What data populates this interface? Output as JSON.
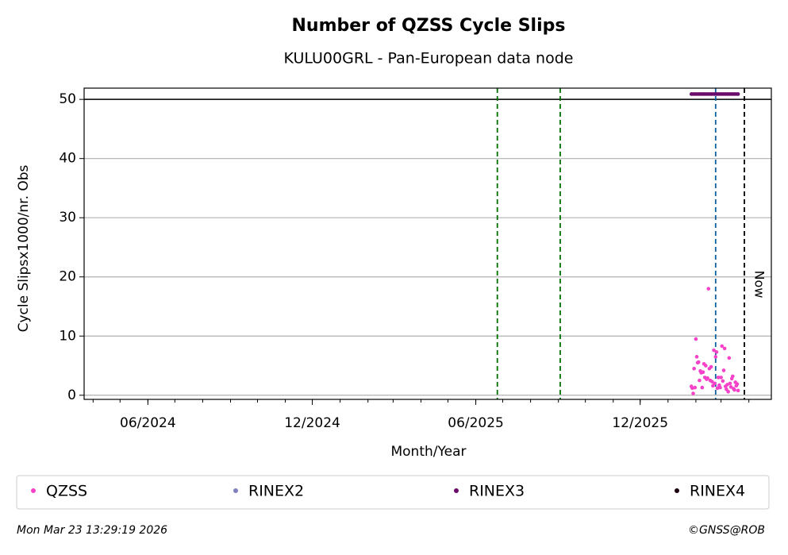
{
  "chart_data": {
    "type": "scatter",
    "title": "Number of QZSS Cycle Slips",
    "subtitle": "KULU00GRL - Pan-European data node",
    "x_label": "Month/Year",
    "y_label": "Cycle Slipsx1000/nr. Obs",
    "xlim": [
      "2024-03-22",
      "2026-04-26"
    ],
    "xticks": [
      {
        "value": "2024-06-01",
        "label": "06/2024"
      },
      {
        "value": "2024-12-01",
        "label": "12/2024"
      },
      {
        "value": "2025-06-01",
        "label": "06/2025"
      },
      {
        "value": "2025-12-01",
        "label": "12/2025"
      }
    ],
    "ylim": [
      -0.7,
      51.9
    ],
    "yticks": [
      0,
      10,
      20,
      30,
      40,
      50
    ],
    "grid": true,
    "hlines": [
      {
        "y": 50,
        "color": "#000000"
      }
    ],
    "vlines": [
      {
        "x": "2025-06-25",
        "color": "#007000"
      },
      {
        "x": "2025-09-03",
        "color": "#007000"
      },
      {
        "x": "2026-02-23",
        "color": "#1060a0"
      },
      {
        "x": "2026-03-27",
        "color": "#000000",
        "label": "Now"
      }
    ],
    "series": [
      {
        "name": "QZSS",
        "color": "#f542c8",
        "x": [
          "2026-01-27",
          "2026-01-28",
          "2026-01-29",
          "2026-01-30",
          "2026-01-31",
          "2026-02-01",
          "2026-02-02",
          "2026-02-03",
          "2026-02-04",
          "2026-02-05",
          "2026-02-06",
          "2026-02-07",
          "2026-02-08",
          "2026-02-09",
          "2026-02-10",
          "2026-02-11",
          "2026-02-12",
          "2026-02-13",
          "2026-02-14",
          "2026-02-15",
          "2026-02-16",
          "2026-02-17",
          "2026-02-18",
          "2026-02-19",
          "2026-02-20",
          "2026-02-21",
          "2026-02-22",
          "2026-02-23",
          "2026-02-24",
          "2026-02-25",
          "2026-02-26",
          "2026-02-27",
          "2026-02-28",
          "2026-03-01",
          "2026-03-02",
          "2026-03-03",
          "2026-03-04",
          "2026-03-05",
          "2026-03-06",
          "2026-03-07",
          "2026-03-08",
          "2026-03-09",
          "2026-03-10",
          "2026-03-11",
          "2026-03-12",
          "2026-03-13",
          "2026-03-14",
          "2026-03-15",
          "2026-03-16",
          "2026-03-17",
          "2026-03-18",
          "2026-03-19",
          "2026-03-20"
        ],
        "values": [
          1.5,
          1.2,
          0.3,
          4.5,
          1.3,
          9.5,
          6.5,
          5.5,
          5.6,
          2.5,
          4.1,
          3.8,
          1.3,
          3.9,
          5.3,
          3.0,
          5.0,
          2.7,
          2.9,
          18.0,
          4.5,
          2.5,
          4.8,
          2.3,
          1.6,
          7.6,
          2.0,
          6.5,
          7.3,
          1.2,
          3.0,
          1.7,
          1.3,
          3.0,
          8.3,
          2.4,
          4.2,
          7.9,
          1.5,
          1.0,
          1.8,
          0.6,
          6.3,
          2.0,
          1.4,
          2.8,
          3.2,
          1.1,
          0.9,
          2.2,
          1.6,
          1.9,
          0.8
        ]
      },
      {
        "name": "RINEX2",
        "color": "#8080c0",
        "x": [],
        "values": []
      },
      {
        "name": "RINEX3",
        "color": "#6a0a6a",
        "x": [
          "2026-01-27",
          "2026-01-29",
          "2026-01-31",
          "2026-02-02",
          "2026-02-04",
          "2026-02-06",
          "2026-02-08",
          "2026-02-10",
          "2026-02-12",
          "2026-02-14",
          "2026-02-16",
          "2026-02-18",
          "2026-02-20",
          "2026-02-22",
          "2026-02-24",
          "2026-02-26",
          "2026-02-28",
          "2026-03-02",
          "2026-03-04",
          "2026-03-06",
          "2026-03-08",
          "2026-03-10",
          "2026-03-12",
          "2026-03-14",
          "2026-03-16",
          "2026-03-18",
          "2026-03-20"
        ],
        "values": [
          50.9,
          50.9,
          50.9,
          50.9,
          50.9,
          50.9,
          50.9,
          50.9,
          50.9,
          50.9,
          50.9,
          50.9,
          50.9,
          50.9,
          50.9,
          50.9,
          50.9,
          50.9,
          50.9,
          50.9,
          50.9,
          50.9,
          50.9,
          50.9,
          50.9,
          50.9,
          50.9
        ]
      },
      {
        "name": "RINEX4",
        "color": "#1a0010",
        "x": [],
        "values": []
      }
    ],
    "footer_left": "Mon Mar 23 13:29:19 2026",
    "footer_right": "©GNSS@ROB"
  }
}
